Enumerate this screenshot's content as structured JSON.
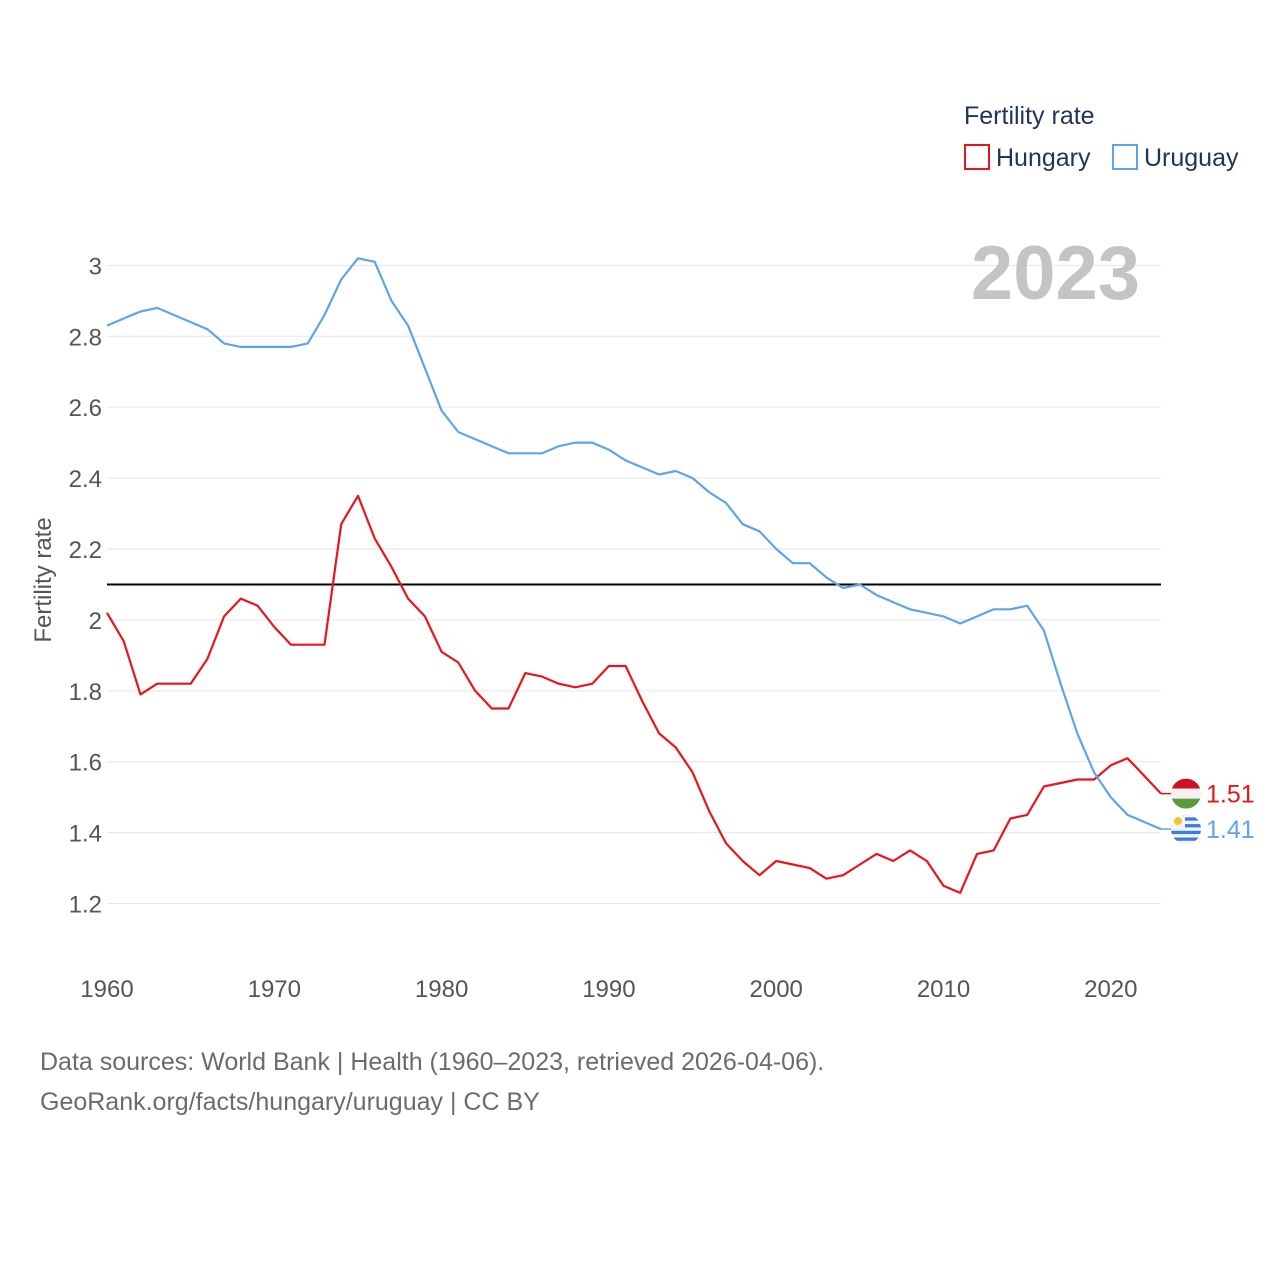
{
  "chart_data": {
    "type": "line",
    "ylabel": "Fertility rate",
    "legend": {
      "title": "Fertility rate",
      "position": "top-right"
    },
    "year_label": "2023",
    "xlim": [
      1960,
      2023
    ],
    "ylim": [
      1.1,
      3.08
    ],
    "x_ticks": [
      1960,
      1970,
      1980,
      1990,
      2000,
      2010,
      2020
    ],
    "y_ticks": [
      1.2,
      1.4,
      1.6,
      1.8,
      2,
      2.2,
      2.4,
      2.6,
      2.8,
      3
    ],
    "reference_line": 2.1,
    "x": [
      1960,
      1961,
      1962,
      1963,
      1964,
      1965,
      1966,
      1967,
      1968,
      1969,
      1970,
      1971,
      1972,
      1973,
      1974,
      1975,
      1976,
      1977,
      1978,
      1979,
      1980,
      1981,
      1982,
      1983,
      1984,
      1985,
      1986,
      1987,
      1988,
      1989,
      1990,
      1991,
      1992,
      1993,
      1994,
      1995,
      1996,
      1997,
      1998,
      1999,
      2000,
      2001,
      2002,
      2003,
      2004,
      2005,
      2006,
      2007,
      2008,
      2009,
      2010,
      2011,
      2012,
      2013,
      2014,
      2015,
      2016,
      2017,
      2018,
      2019,
      2020,
      2021,
      2022,
      2023
    ],
    "series": [
      {
        "name": "Hungary",
        "color": "#e8161b",
        "end_label": "1.51",
        "flag": "hungary-flag",
        "values": [
          2.02,
          1.94,
          1.79,
          1.82,
          1.82,
          1.82,
          1.89,
          2.01,
          2.06,
          2.04,
          1.98,
          1.93,
          1.93,
          1.93,
          2.27,
          2.35,
          2.23,
          2.15,
          2.06,
          2.01,
          1.91,
          1.88,
          1.8,
          1.75,
          1.75,
          1.85,
          1.84,
          1.82,
          1.81,
          1.82,
          1.87,
          1.87,
          1.77,
          1.68,
          1.64,
          1.57,
          1.46,
          1.37,
          1.32,
          1.28,
          1.32,
          1.31,
          1.3,
          1.27,
          1.28,
          1.31,
          1.34,
          1.32,
          1.35,
          1.32,
          1.25,
          1.23,
          1.34,
          1.35,
          1.44,
          1.45,
          1.53,
          1.54,
          1.55,
          1.55,
          1.59,
          1.61,
          1.56,
          1.51
        ]
      },
      {
        "name": "Uruguay",
        "color": "#5ea5e6",
        "end_label": "1.41",
        "flag": "uruguay-flag",
        "values": [
          2.83,
          2.85,
          2.87,
          2.88,
          2.86,
          2.84,
          2.82,
          2.78,
          2.77,
          2.77,
          2.77,
          2.77,
          2.78,
          2.86,
          2.96,
          3.02,
          3.01,
          2.9,
          2.83,
          2.71,
          2.59,
          2.53,
          2.51,
          2.49,
          2.47,
          2.47,
          2.47,
          2.49,
          2.5,
          2.5,
          2.48,
          2.45,
          2.43,
          2.41,
          2.42,
          2.4,
          2.36,
          2.33,
          2.27,
          2.25,
          2.2,
          2.16,
          2.16,
          2.12,
          2.09,
          2.1,
          2.07,
          2.05,
          2.03,
          2.02,
          2.01,
          1.99,
          2.01,
          2.03,
          2.03,
          2.04,
          1.97,
          1.82,
          1.68,
          1.57,
          1.5,
          1.45,
          1.43,
          1.41
        ]
      }
    ]
  },
  "footer": {
    "line1": "Data sources: World Bank | Health (1960–2023, retrieved 2026-04-06).",
    "line2": "GeoRank.org/facts/hungary/uruguay | CC BY"
  }
}
